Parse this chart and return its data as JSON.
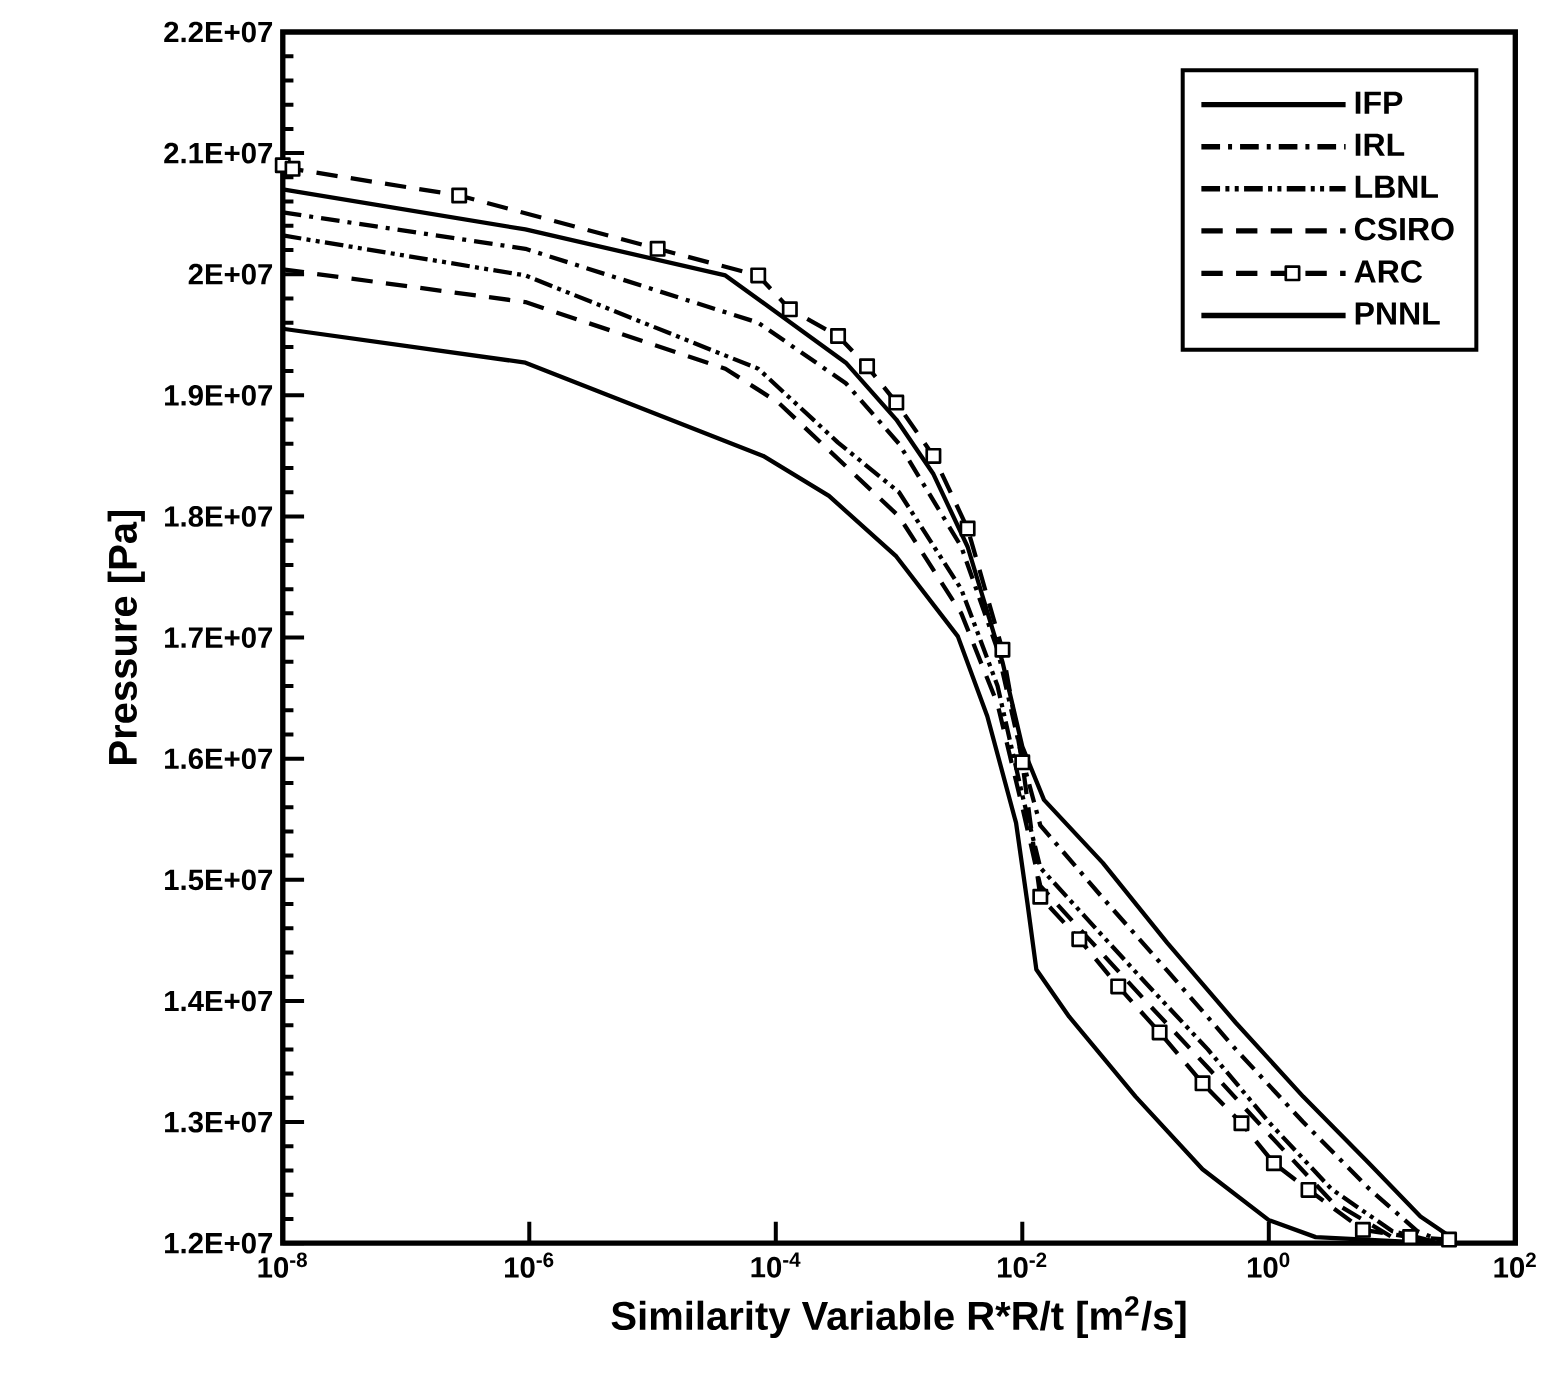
{
  "chart_data": {
    "type": "line",
    "xlabel": "Similarity Variable R*R/t [m$^{2}$/s]",
    "ylabel": "Pressure [Pa]",
    "log": "x",
    "legend": "top right",
    "grid": false,
    "xlim": [
      1e-08,
      100
    ],
    "ylim": [
      12000000,
      22000000
    ],
    "xticks": [
      {
        "value": 1e-08,
        "label": "10$^{-8}$"
      },
      {
        "value": 1e-06,
        "label": "10$^{-6}$"
      },
      {
        "value": 0.0001,
        "label": "10$^{-4}$"
      },
      {
        "value": 0.01,
        "label": "10$^{-2}$"
      },
      {
        "value": 1,
        "label": "10$^{0}$"
      },
      {
        "value": 100,
        "label": "10$^{2}$"
      }
    ],
    "yticks": [
      {
        "value": 12000000,
        "label": "1.2E+07"
      },
      {
        "value": 13000000,
        "label": "1.3E+07"
      },
      {
        "value": 14000000,
        "label": "1.4E+07"
      },
      {
        "value": 15000000,
        "label": "1.5E+07"
      },
      {
        "value": 16000000,
        "label": "1.6E+07"
      },
      {
        "value": 17000000,
        "label": "1.7E+07"
      },
      {
        "value": 18000000,
        "label": "1.8E+07"
      },
      {
        "value": 19000000,
        "label": "1.9E+07"
      },
      {
        "value": 20000000,
        "label": "2E+07"
      },
      {
        "value": 21000000,
        "label": "2.1E+07"
      },
      {
        "value": 22000000,
        "label": "2.2E+07"
      }
    ],
    "series": [
      {
        "name": "IFP",
        "color": "#000000",
        "line_style": "solid",
        "x": [
          1e-08,
          9.3e-07,
          3.9e-05,
          0.00037,
          0.00095,
          0.0019,
          0.0036,
          0.0069,
          0.01,
          0.015,
          0.045,
          0.15,
          0.54,
          1.9,
          6.5,
          17,
          32
        ],
        "values": [
          20700000,
          20370000,
          19990000,
          19270000,
          18800000,
          18350000,
          17750000,
          16800000,
          16100000,
          15660000,
          15140000,
          14480000,
          13820000,
          13210000,
          12660000,
          12220000,
          12030000
        ]
      },
      {
        "name": "IRL",
        "color": "#000000",
        "line_style": "dashdot",
        "x": [
          1e-08,
          9.3e-07,
          7.2e-05,
          0.00037,
          0.001,
          0.0032,
          0.0063,
          0.01,
          0.014,
          0.045,
          0.15,
          0.54,
          1.9,
          6.5,
          16,
          28
        ],
        "values": [
          20510000,
          20210000,
          19600000,
          19100000,
          18600000,
          17750000,
          16900000,
          16000000,
          15450000,
          14850000,
          14250000,
          13600000,
          13000000,
          12450000,
          12100000,
          12000000
        ]
      },
      {
        "name": "LBNL",
        "color": "#000000",
        "line_style": "dashdotdot",
        "x": [
          1e-08,
          9.3e-07,
          7.2e-05,
          0.00032,
          0.001,
          0.0032,
          0.0063,
          0.01,
          0.014,
          0.032,
          0.1,
          0.32,
          1,
          3.2,
          10,
          25
        ],
        "values": [
          20320000,
          19990000,
          19220000,
          18610000,
          18200000,
          17400000,
          16600000,
          15700000,
          15100000,
          14700000,
          14150000,
          13600000,
          13000000,
          12450000,
          12100000,
          12000000
        ]
      },
      {
        "name": "CSIRO",
        "color": "#000000",
        "line_style": "dashed",
        "x": [
          1e-08,
          9.3e-07,
          3.9e-05,
          0.000105,
          0.001,
          0.0032,
          0.0063,
          0.01,
          0.014,
          0.032,
          0.1,
          0.32,
          1,
          3.2,
          10,
          25
        ],
        "values": [
          20040000,
          19770000,
          19220000,
          18940000,
          18000000,
          17200000,
          16450000,
          15600000,
          14950000,
          14550000,
          14000000,
          13450000,
          12900000,
          12350000,
          12050000,
          12000000
        ]
      },
      {
        "name": "ARC",
        "color": "#000000",
        "line_style": "dashed",
        "marker": "square",
        "x": [
          1e-08,
          1.2e-08,
          2.7e-07,
          1.1e-05,
          7.2e-05,
          0.00013,
          0.00032,
          0.00055,
          0.00095,
          0.0019,
          0.0036,
          0.0069,
          0.01,
          0.014,
          0.029,
          0.06,
          0.13,
          0.29,
          0.6,
          1.1,
          2.1,
          5.8,
          14,
          29
        ],
        "values": [
          20900000,
          20870000,
          20650000,
          20210000,
          19990000,
          19710000,
          19490000,
          19240000,
          18940000,
          18500000,
          17900000,
          16900000,
          15970000,
          14860000,
          14510000,
          14120000,
          13740000,
          13320000,
          12990000,
          12660000,
          12440000,
          12110000,
          12050000,
          12030000
        ]
      },
      {
        "name": "PNNL",
        "color": "#000000",
        "line_style": "solid",
        "x": [
          1e-08,
          9.3e-07,
          7.9e-05,
          0.00027,
          0.00095,
          0.003,
          0.0052,
          0.0089,
          0.011,
          0.013,
          0.024,
          0.083,
          0.29,
          1,
          2.4,
          22
        ],
        "values": [
          19550000,
          19270000,
          18500000,
          18170000,
          17670000,
          17010000,
          16350000,
          15470000,
          14810000,
          14260000,
          13870000,
          13210000,
          12610000,
          12190000,
          12050000,
          12000000
        ]
      }
    ]
  }
}
